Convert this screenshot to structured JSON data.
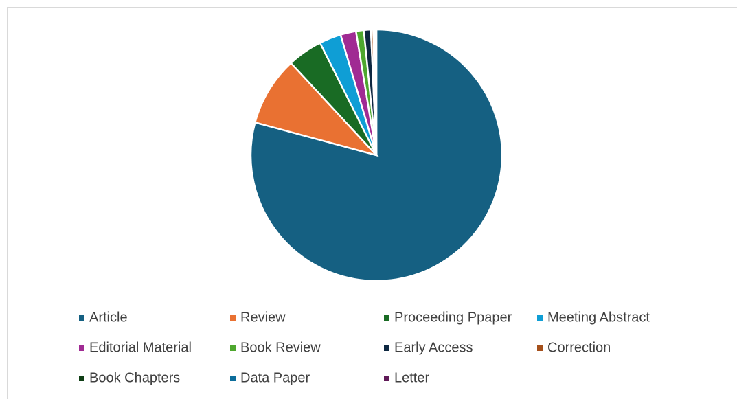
{
  "chart_data": {
    "type": "pie",
    "categories": [
      "Article",
      "Review",
      "Proceeding Ppaper",
      "Meeting Abstract",
      "Editorial Material",
      "Book Review",
      "Early Access",
      "Correction",
      "Book Chapters",
      "Data Paper",
      "Letter"
    ],
    "values": [
      79.2,
      8.9,
      4.5,
      2.8,
      2.0,
      1.0,
      0.9,
      0.3,
      0.2,
      0.1,
      0.1
    ],
    "colors": [
      "#156082",
      "#e97132",
      "#196b24",
      "#0f9ed5",
      "#a02b93",
      "#4ea72e",
      "#0e2841",
      "#a5501b",
      "#0f3e15",
      "#0c6d9b",
      "#601a58"
    ],
    "legend": "bottom"
  }
}
